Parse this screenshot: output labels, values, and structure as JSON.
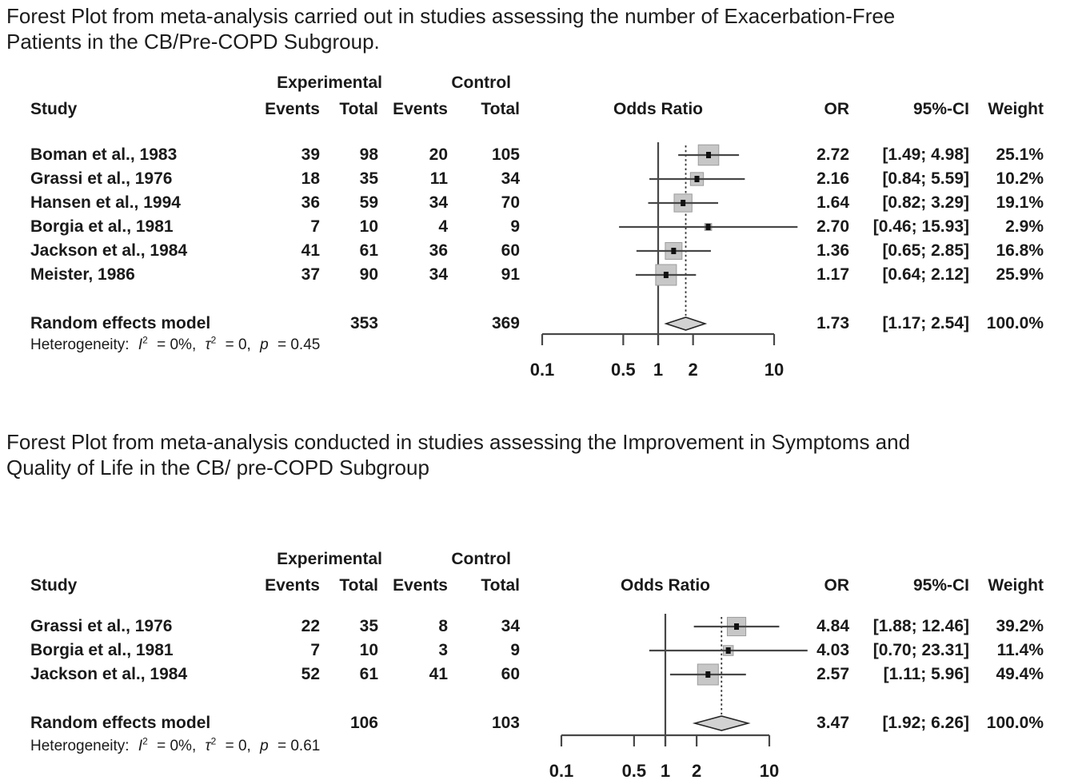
{
  "colors": {
    "text": "#1a1a1a",
    "ci_line": "#474747",
    "square_fill": "#c7c7c7",
    "square_border": "#9c9c9c",
    "diamond_fill": "#d2d2d2",
    "diamond_border": "#262626",
    "dotted_line": "#333333",
    "point": "#111111"
  },
  "chart_data": [
    {
      "type": "forest",
      "effect_measure": "Odds Ratio",
      "x_scale": "log",
      "title": "Forest Plot from meta-analysis carried out in studies assessing the number of Exacerbation-Free Patients in the CB/Pre-COPD Subgroup.",
      "title_lines": [
        "Forest Plot from meta-analysis carried out in studies assessing the number of Exacerbation-Free",
        "Patients in the CB/Pre-COPD Subgroup."
      ],
      "header": {
        "study": "Study",
        "group1": "Experimental",
        "group2": "Control",
        "events1": "Events",
        "total1": "Total",
        "events2": "Events",
        "total2": "Total",
        "plot_title": "Odds Ratio",
        "or": "OR",
        "ci": "95%-CI",
        "weight": "Weight"
      },
      "studies": [
        {
          "label": "Boman et al., 1983",
          "e_events": "39",
          "e_total": "98",
          "c_events": "20",
          "c_total": "105",
          "or": 2.72,
          "ci_low": 1.49,
          "ci_high": 4.98,
          "or_text": "2.72",
          "ci_text": "[1.49; 4.98]",
          "weight": 25.1,
          "weight_text": "25.1%"
        },
        {
          "label": "Grassi et al., 1976",
          "e_events": "18",
          "e_total": "35",
          "c_events": "11",
          "c_total": "34",
          "or": 2.16,
          "ci_low": 0.84,
          "ci_high": 5.59,
          "or_text": "2.16",
          "ci_text": "[0.84; 5.59]",
          "weight": 10.2,
          "weight_text": "10.2%"
        },
        {
          "label": "Hansen et al., 1994",
          "e_events": "36",
          "e_total": "59",
          "c_events": "34",
          "c_total": "70",
          "or": 1.64,
          "ci_low": 0.82,
          "ci_high": 3.29,
          "or_text": "1.64",
          "ci_text": "[0.82; 3.29]",
          "weight": 19.1,
          "weight_text": "19.1%"
        },
        {
          "label": "Borgia et al., 1981",
          "e_events": "7",
          "e_total": "10",
          "c_events": "4",
          "c_total": "9",
          "or": 2.7,
          "ci_low": 0.46,
          "ci_high": 15.93,
          "or_text": "2.70",
          "ci_text": "[0.46; 15.93]",
          "weight": 2.9,
          "weight_text": "2.9%"
        },
        {
          "label": "Jackson et al., 1984",
          "e_events": "41",
          "e_total": "61",
          "c_events": "36",
          "c_total": "60",
          "or": 1.36,
          "ci_low": 0.65,
          "ci_high": 2.85,
          "or_text": "1.36",
          "ci_text": "[0.65; 2.85]",
          "weight": 16.8,
          "weight_text": "16.8%"
        },
        {
          "label": "Meister, 1986",
          "e_events": "37",
          "e_total": "90",
          "c_events": "34",
          "c_total": "91",
          "or": 1.17,
          "ci_low": 0.64,
          "ci_high": 2.12,
          "or_text": "1.17",
          "ci_text": "[0.64; 2.12]",
          "weight": 25.9,
          "weight_text": "25.9%"
        }
      ],
      "pooled": {
        "label": "Random effects model",
        "e_total": "353",
        "c_total": "369",
        "or": 1.73,
        "ci_low": 1.17,
        "ci_high": 2.54,
        "or_text": "1.73",
        "ci_text": "[1.17; 2.54]",
        "weight_text": "100.0%"
      },
      "heterogeneity": {
        "label": "Heterogeneity:",
        "i_sym": "I",
        "sup": "2",
        "i_val": "= 0%,",
        "tau_sym": "τ",
        "tau_val": "= 0,",
        "p_sym": "p",
        "p_val": "= 0.45"
      },
      "axis": {
        "min": 0.1,
        "max": 10,
        "ref_line": 1,
        "tick_values": [
          0.1,
          0.5,
          1,
          2,
          10
        ],
        "ticks": [
          "0.1",
          "0.5",
          "1",
          "2",
          "10"
        ]
      }
    },
    {
      "type": "forest",
      "effect_measure": "Odds Ratio",
      "x_scale": "log",
      "title": "Forest Plot from meta-analysis conducted in studies assessing the Improvement in Symptoms and Quality of Life in the CB/ pre-COPD Subgroup",
      "title_lines": [
        "Forest Plot from meta-analysis conducted in studies assessing the Improvement in Symptoms and",
        "Quality of Life in the CB/ pre-COPD Subgroup"
      ],
      "header": {
        "study": "Study",
        "group1": "Experimental",
        "group2": "Control",
        "events1": "Events",
        "total1": "Total",
        "events2": "Events",
        "total2": "Total",
        "plot_title": "Odds Ratio",
        "or": "OR",
        "ci": "95%-CI",
        "weight": "Weight"
      },
      "studies": [
        {
          "label": "Grassi et al., 1976",
          "e_events": "22",
          "e_total": "35",
          "c_events": "8",
          "c_total": "34",
          "or": 4.84,
          "ci_low": 1.88,
          "ci_high": 12.46,
          "or_text": "4.84",
          "ci_text": "[1.88; 12.46]",
          "weight": 39.2,
          "weight_text": "39.2%"
        },
        {
          "label": "Borgia et al., 1981",
          "e_events": "7",
          "e_total": "10",
          "c_events": "3",
          "c_total": "9",
          "or": 4.03,
          "ci_low": 0.7,
          "ci_high": 23.31,
          "or_text": "4.03",
          "ci_text": "[0.70; 23.31]",
          "weight": 11.4,
          "weight_text": "11.4%"
        },
        {
          "label": "Jackson et al., 1984",
          "e_events": "52",
          "e_total": "61",
          "c_events": "41",
          "c_total": "60",
          "or": 2.57,
          "ci_low": 1.11,
          "ci_high": 5.96,
          "or_text": "2.57",
          "ci_text": "[1.11; 5.96]",
          "weight": 49.4,
          "weight_text": "49.4%"
        }
      ],
      "pooled": {
        "label": "Random effects model",
        "e_total": "106",
        "c_total": "103",
        "or": 3.47,
        "ci_low": 1.92,
        "ci_high": 6.26,
        "or_text": "3.47",
        "ci_text": "[1.92; 6.26]",
        "weight_text": "100.0%"
      },
      "heterogeneity": {
        "label": "Heterogeneity:",
        "i_sym": "I",
        "sup": "2",
        "i_val": "= 0%,",
        "tau_sym": "τ",
        "tau_val": "= 0,",
        "p_sym": "p",
        "p_val": "= 0.61"
      },
      "axis": {
        "min": 0.1,
        "max": 10,
        "ref_line": 1,
        "tick_values": [
          0.1,
          0.5,
          1,
          2,
          10
        ],
        "ticks": [
          "0.1",
          "0.5",
          "1",
          "2",
          "10"
        ]
      }
    }
  ]
}
